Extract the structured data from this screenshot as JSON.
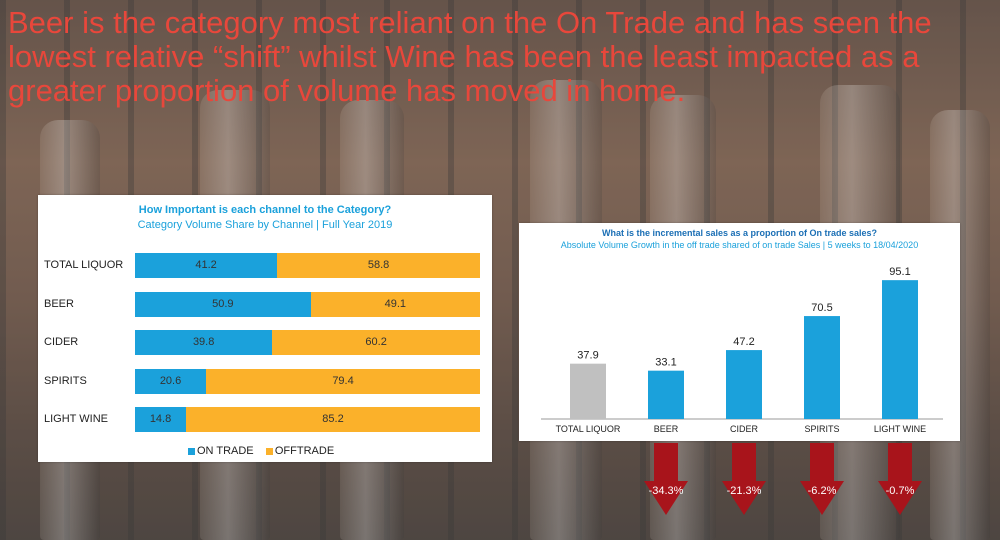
{
  "title": "Beer is the category most reliant on the On Trade and has seen the lowest relative “shift” whilst Wine has been the least impacted as a greater proportion of volume has moved in home.",
  "colors": {
    "title": "#e8473b",
    "on_trade": "#1ba1db",
    "off_trade": "#fbb12a",
    "total_bar": "#c0c0c0",
    "arrow": "#a8141b"
  },
  "chart_data": [
    {
      "type": "bar",
      "orientation": "horizontal",
      "stacked": true,
      "title": "How Important is each channel to the Category?",
      "subtitle": "Category Volume Share by Channel  | Full Year 2019",
      "categories": [
        "TOTAL LIQUOR",
        "BEER",
        "CIDER",
        "SPIRITS",
        "LIGHT WINE"
      ],
      "series": [
        {
          "name": "ON TRADE",
          "values": [
            41.2,
            50.9,
            39.8,
            20.6,
            14.8
          ]
        },
        {
          "name": "OFFTRADE",
          "values": [
            58.8,
            49.1,
            60.2,
            79.4,
            85.2
          ]
        }
      ],
      "xlim": [
        0,
        100
      ],
      "legend": "bottom"
    },
    {
      "type": "bar",
      "title": "What is the incremental sales as a proportion of On trade sales?",
      "subtitle": "Absolute Volume Growth in the off trade shared of on trade Sales | 5 weeks to 18/04/2020",
      "categories": [
        "TOTAL LIQUOR",
        "BEER",
        "CIDER",
        "SPIRITS",
        "LIGHT WINE"
      ],
      "values": [
        37.9,
        33.1,
        47.2,
        70.5,
        95.1
      ],
      "ylim": [
        0,
        100
      ],
      "annotations": [
        {
          "category": "BEER",
          "label": "-34.3%"
        },
        {
          "category": "CIDER",
          "label": "-21.3%"
        },
        {
          "category": "SPIRITS",
          "label": "-6.2%"
        },
        {
          "category": "LIGHT WINE",
          "label": "-0.7%"
        }
      ]
    }
  ]
}
